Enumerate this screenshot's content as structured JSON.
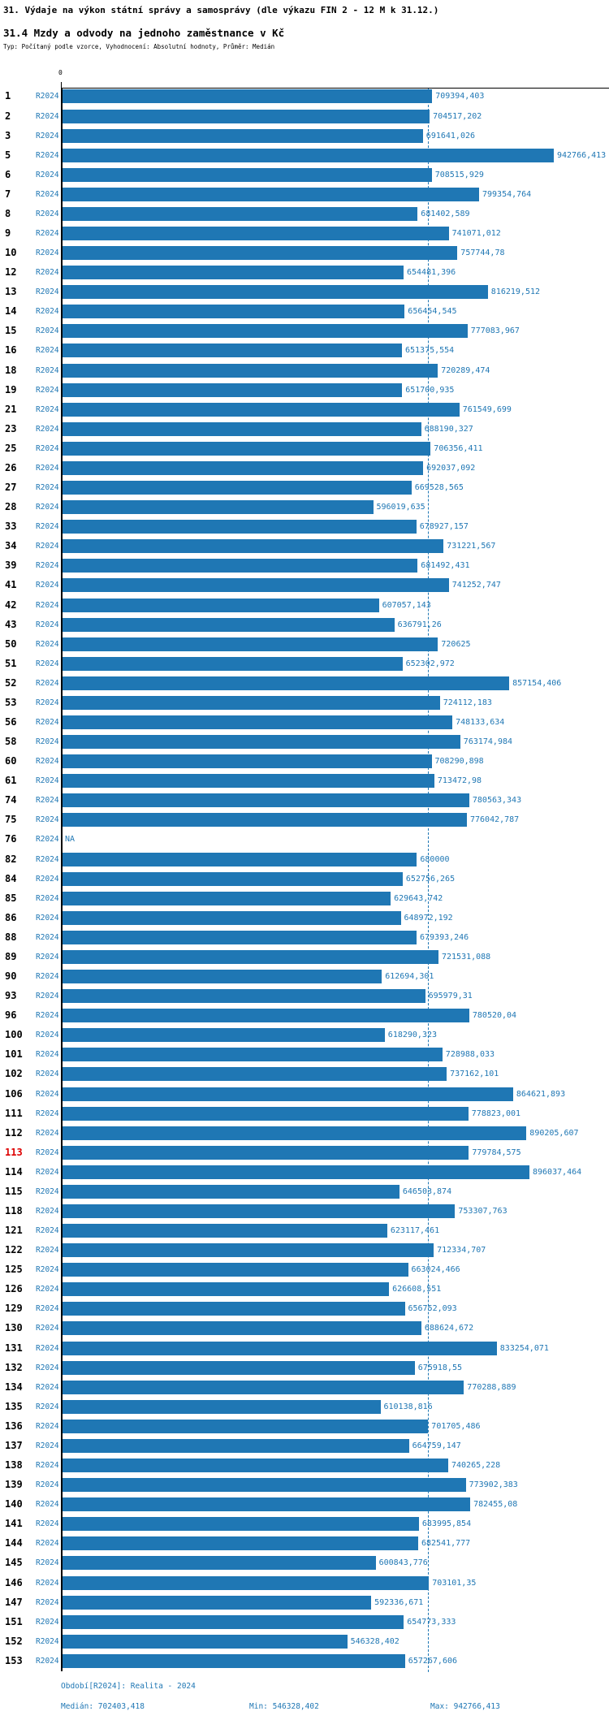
{
  "header": {
    "title": "31. Výdaje na výkon státní správy a samosprávy (dle výkazu FIN 2 - 12 M k 31.12.)",
    "subtitle": "31.4 Mzdy a odvody na jednoho zaměstnance v Kč",
    "meta": "Typ: Počítaný podle vzorce, Vyhodnocení: Absolutní hodnoty, Průměr: Medián"
  },
  "chart_data": {
    "type": "bar",
    "orientation": "horizontal",
    "xlabel": "",
    "ylabel": "",
    "axis_zero_label": "0",
    "xlim": [
      0,
      942766.413
    ],
    "x_max": 942766.413,
    "series_label": "R2024",
    "bar_color": "#1f77b4",
    "median_value": 702403.418,
    "median_line": "dashed",
    "highlight_row_id": "113",
    "highlight_color": "#dd0000",
    "rows": [
      {
        "id": "1",
        "value": "709394,403"
      },
      {
        "id": "2",
        "value": "704517,202"
      },
      {
        "id": "3",
        "value": "691641,026"
      },
      {
        "id": "5",
        "value": "942766,413"
      },
      {
        "id": "6",
        "value": "708515,929"
      },
      {
        "id": "7",
        "value": "799354,764"
      },
      {
        "id": "8",
        "value": "681402,589"
      },
      {
        "id": "9",
        "value": "741071,012"
      },
      {
        "id": "10",
        "value": "757744,78"
      },
      {
        "id": "12",
        "value": "654481,396"
      },
      {
        "id": "13",
        "value": "816219,512"
      },
      {
        "id": "14",
        "value": "656454,545"
      },
      {
        "id": "15",
        "value": "777083,967"
      },
      {
        "id": "16",
        "value": "651375,554"
      },
      {
        "id": "18",
        "value": "720289,474"
      },
      {
        "id": "19",
        "value": "651700,935"
      },
      {
        "id": "21",
        "value": "761549,699"
      },
      {
        "id": "23",
        "value": "688190,327"
      },
      {
        "id": "25",
        "value": "706356,411"
      },
      {
        "id": "26",
        "value": "692037,092"
      },
      {
        "id": "27",
        "value": "669528,565"
      },
      {
        "id": "28",
        "value": "596019,635"
      },
      {
        "id": "33",
        "value": "678927,157"
      },
      {
        "id": "34",
        "value": "731221,567"
      },
      {
        "id": "39",
        "value": "681492,431"
      },
      {
        "id": "41",
        "value": "741252,747"
      },
      {
        "id": "42",
        "value": "607057,143"
      },
      {
        "id": "43",
        "value": "636791,26"
      },
      {
        "id": "50",
        "value": "720625"
      },
      {
        "id": "51",
        "value": "652302,972"
      },
      {
        "id": "52",
        "value": "857154,406"
      },
      {
        "id": "53",
        "value": "724112,183"
      },
      {
        "id": "56",
        "value": "748133,634"
      },
      {
        "id": "58",
        "value": "763174,984"
      },
      {
        "id": "60",
        "value": "708290,898"
      },
      {
        "id": "61",
        "value": "713472,98"
      },
      {
        "id": "74",
        "value": "780563,343"
      },
      {
        "id": "75",
        "value": "776042,787"
      },
      {
        "id": "76",
        "value": "NA"
      },
      {
        "id": "82",
        "value": "680000"
      },
      {
        "id": "84",
        "value": "652756,265"
      },
      {
        "id": "85",
        "value": "629643,742"
      },
      {
        "id": "86",
        "value": "648972,192"
      },
      {
        "id": "88",
        "value": "679393,246"
      },
      {
        "id": "89",
        "value": "721531,088"
      },
      {
        "id": "90",
        "value": "612694,301"
      },
      {
        "id": "93",
        "value": "695979,31"
      },
      {
        "id": "96",
        "value": "780520,04"
      },
      {
        "id": "100",
        "value": "618290,323"
      },
      {
        "id": "101",
        "value": "728988,033"
      },
      {
        "id": "102",
        "value": "737162,101"
      },
      {
        "id": "106",
        "value": "864621,893"
      },
      {
        "id": "111",
        "value": "778823,001"
      },
      {
        "id": "112",
        "value": "890205,607"
      },
      {
        "id": "113",
        "value": "779784,575",
        "highlight": true
      },
      {
        "id": "114",
        "value": "896037,464"
      },
      {
        "id": "115",
        "value": "646503,874"
      },
      {
        "id": "118",
        "value": "753307,763"
      },
      {
        "id": "121",
        "value": "623117,461"
      },
      {
        "id": "122",
        "value": "712334,707"
      },
      {
        "id": "125",
        "value": "663024,466"
      },
      {
        "id": "126",
        "value": "626608,551"
      },
      {
        "id": "129",
        "value": "656752,093"
      },
      {
        "id": "130",
        "value": "688624,672"
      },
      {
        "id": "131",
        "value": "833254,071"
      },
      {
        "id": "132",
        "value": "675918,55"
      },
      {
        "id": "134",
        "value": "770288,889"
      },
      {
        "id": "135",
        "value": "610138,816"
      },
      {
        "id": "136",
        "value": "701705,486"
      },
      {
        "id": "137",
        "value": "664759,147"
      },
      {
        "id": "138",
        "value": "740265,228"
      },
      {
        "id": "139",
        "value": "773902,383"
      },
      {
        "id": "140",
        "value": "782455,08"
      },
      {
        "id": "141",
        "value": "683995,854"
      },
      {
        "id": "144",
        "value": "682541,777"
      },
      {
        "id": "145",
        "value": "600843,776"
      },
      {
        "id": "146",
        "value": "703101,35"
      },
      {
        "id": "147",
        "value": "592336,671"
      },
      {
        "id": "151",
        "value": "654773,333"
      },
      {
        "id": "152",
        "value": "546328,402"
      },
      {
        "id": "153",
        "value": "657267,606"
      }
    ]
  },
  "footer": {
    "period": "Období[R2024]: Realita - 2024",
    "median": "Medián: 702403,418",
    "min": "Min: 546328,402",
    "max": "Max: 942766,413"
  }
}
